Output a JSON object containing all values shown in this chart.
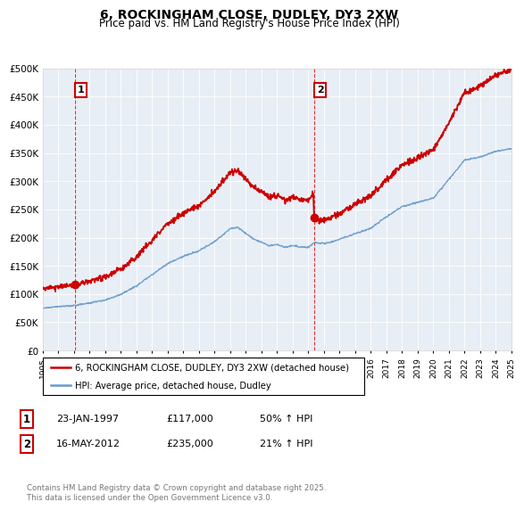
{
  "title": "6, ROCKINGHAM CLOSE, DUDLEY, DY3 2XW",
  "subtitle": "Price paid vs. HM Land Registry's House Price Index (HPI)",
  "ylim": [
    0,
    500000
  ],
  "yticks": [
    0,
    50000,
    100000,
    150000,
    200000,
    250000,
    300000,
    350000,
    400000,
    450000,
    500000
  ],
  "ytick_labels": [
    "£0",
    "£50K",
    "£100K",
    "£150K",
    "£200K",
    "£250K",
    "£300K",
    "£350K",
    "£400K",
    "£450K",
    "£500K"
  ],
  "xmin": 1995,
  "xmax": 2025,
  "red_line_color": "#cc0000",
  "blue_line_color": "#6699cc",
  "vline_color": "#dd0000",
  "annotation_box_color": "#cc0000",
  "plot_bg_color": "#e8eef5",
  "legend_label_red": "6, ROCKINGHAM CLOSE, DUDLEY, DY3 2XW (detached house)",
  "legend_label_blue": "HPI: Average price, detached house, Dudley",
  "marker1_x": 1997.07,
  "marker1_y": 117000,
  "marker2_x": 2012.38,
  "marker2_y": 235000,
  "vline1_x": 1997.07,
  "vline2_x": 2012.38,
  "table_row1": [
    "1",
    "23-JAN-1997",
    "£117,000",
    "50% ↑ HPI"
  ],
  "table_row2": [
    "2",
    "16-MAY-2012",
    "£235,000",
    "21% ↑ HPI"
  ],
  "footer": "Contains HM Land Registry data © Crown copyright and database right 2025.\nThis data is licensed under the Open Government Licence v3.0.",
  "title_fontsize": 10,
  "subtitle_fontsize": 8.5
}
